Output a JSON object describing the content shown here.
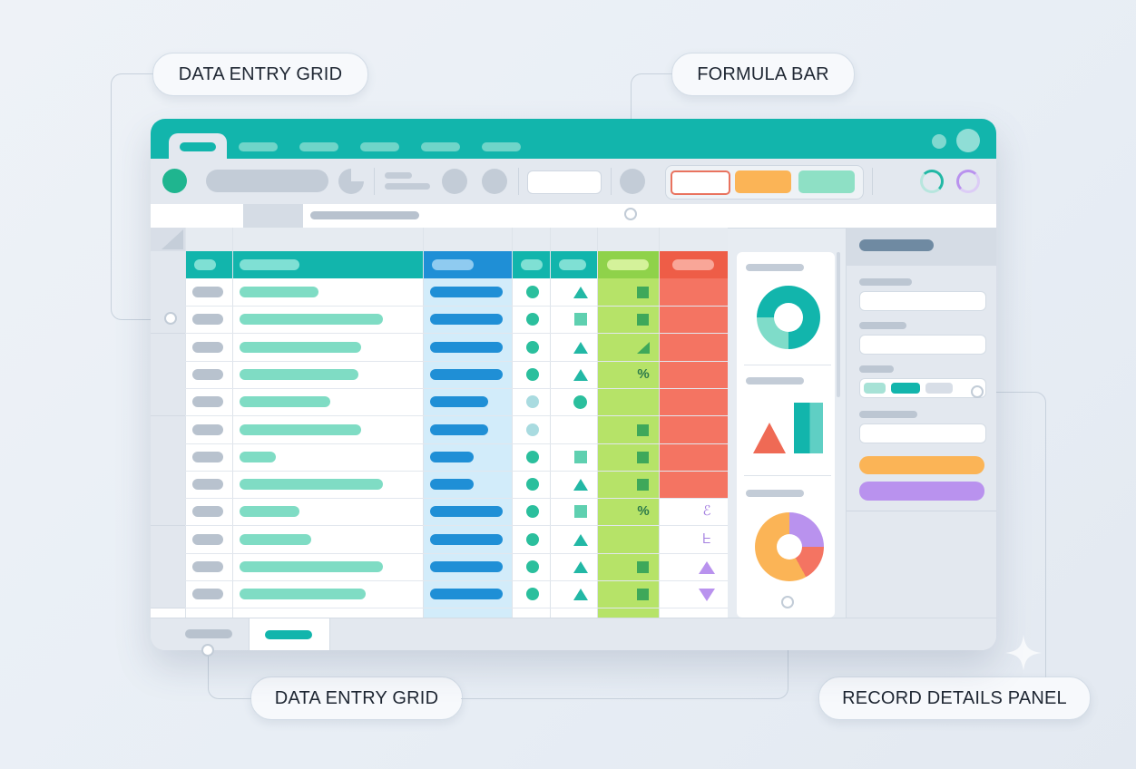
{
  "callouts": {
    "top_left": "DATA ENTRY GRID",
    "top_center": "FORMULA BAR",
    "bottom_center": "DATA ENTRY GRID",
    "bottom_right": "RECORD DETAILS PANEL"
  },
  "colors": {
    "teal": "#12b5ac",
    "blue_column": "#1f8fd6",
    "green_column": "#b6e368",
    "red_column": "#f47462",
    "mint": "#7fdcc4",
    "orange": "#fbb456",
    "purple": "#b992ee"
  },
  "grid_rows": [
    {
      "name_fill": 0.55,
      "blue_fill": 1.0,
      "circle": "teal",
      "shape": "triangle",
      "green_mark": "square",
      "red": true,
      "extra": ""
    },
    {
      "name_fill": 1.0,
      "blue_fill": 1.0,
      "circle": "teal",
      "shape": "square",
      "green_mark": "square",
      "red": true,
      "extra": ""
    },
    {
      "name_fill": 0.85,
      "blue_fill": 1.0,
      "circle": "teal",
      "shape": "triangle",
      "green_mark": "wedge",
      "red": true,
      "extra": ""
    },
    {
      "name_fill": 0.83,
      "blue_fill": 1.0,
      "circle": "teal",
      "shape": "triangle",
      "green_mark": "%",
      "red": true,
      "extra": ""
    },
    {
      "name_fill": 0.63,
      "blue_fill": 0.8,
      "circle": "light",
      "shape": "circle",
      "green_mark": "",
      "red": true,
      "extra": ""
    },
    {
      "name_fill": 0.85,
      "blue_fill": 0.8,
      "circle": "light",
      "shape": "",
      "green_mark": "square",
      "red": true,
      "extra": ""
    },
    {
      "name_fill": 0.25,
      "blue_fill": 0.6,
      "circle": "teal",
      "shape": "square",
      "green_mark": "square",
      "red": true,
      "extra": ""
    },
    {
      "name_fill": 1.0,
      "blue_fill": 0.6,
      "circle": "teal",
      "shape": "triangle",
      "green_mark": "square",
      "red": true,
      "extra": ""
    },
    {
      "name_fill": 0.42,
      "blue_fill": 1.0,
      "circle": "teal",
      "shape": "square",
      "green_mark": "%",
      "red": false,
      "extra": "ℰ"
    },
    {
      "name_fill": 0.5,
      "blue_fill": 1.0,
      "circle": "teal",
      "shape": "triangle",
      "green_mark": "",
      "red": false,
      "extra": "ᖶ"
    },
    {
      "name_fill": 1.0,
      "blue_fill": 1.0,
      "circle": "teal",
      "shape": "triangle",
      "green_mark": "square",
      "red": false,
      "extra": "up"
    },
    {
      "name_fill": 0.88,
      "blue_fill": 1.0,
      "circle": "teal",
      "shape": "triangle",
      "green_mark": "square",
      "red": false,
      "extra": "down"
    }
  ]
}
